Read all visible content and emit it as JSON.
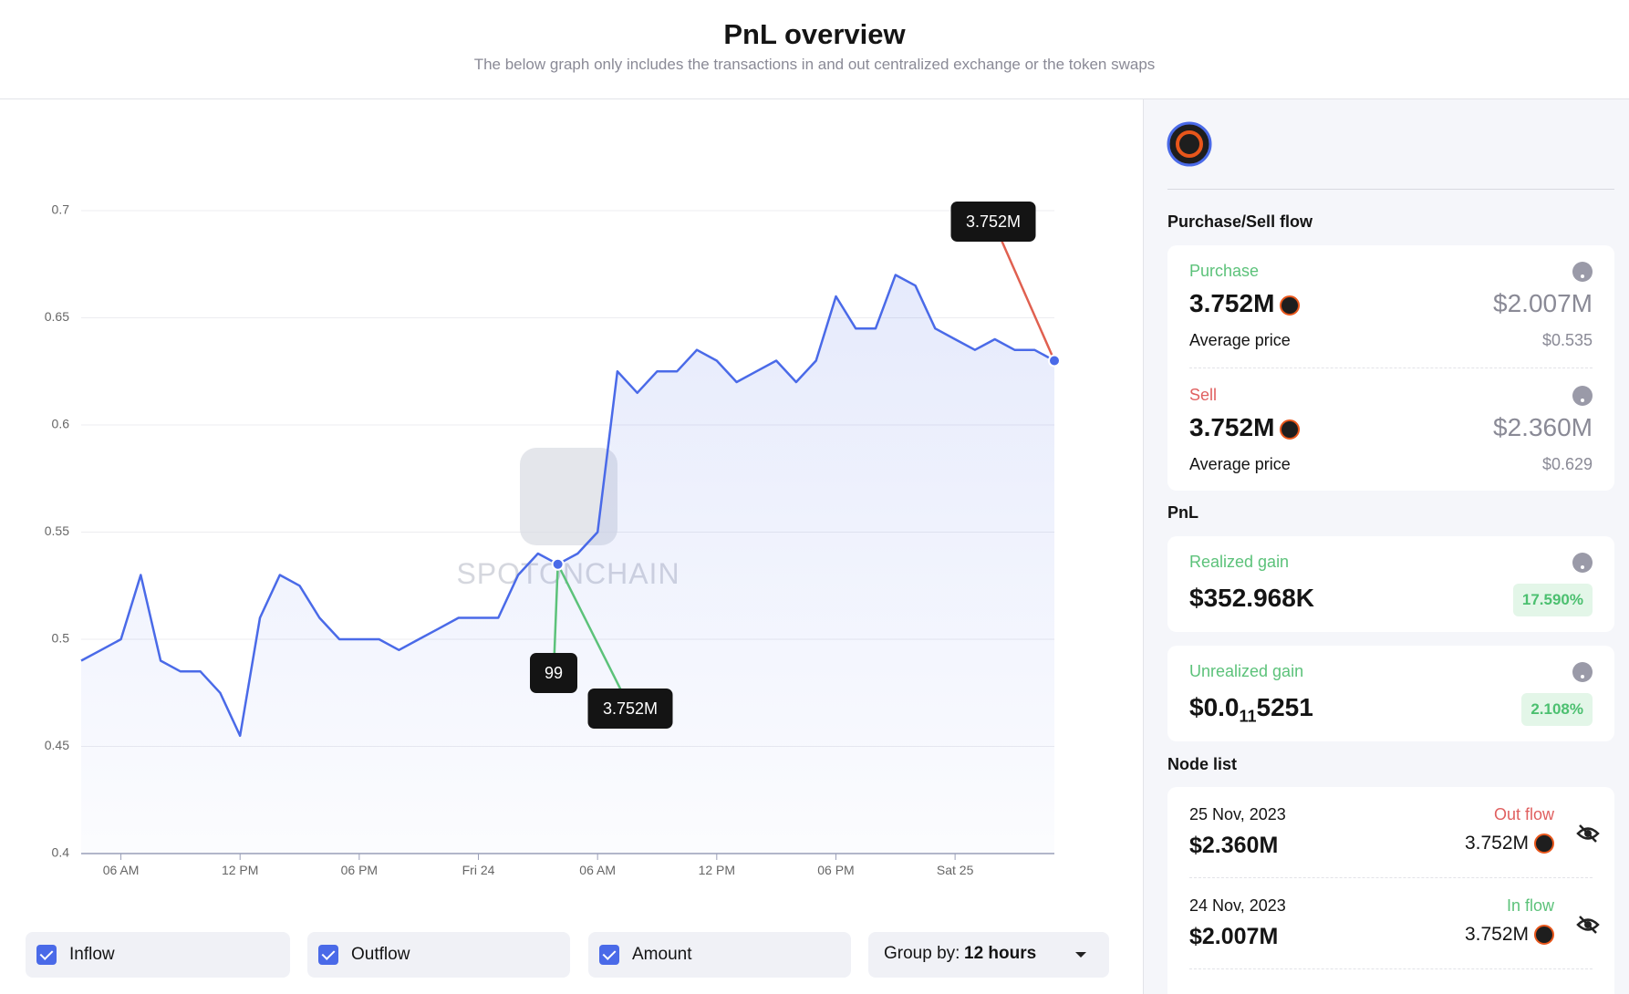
{
  "header": {
    "title": "PnL overview",
    "subtitle": "The below graph only includes the transactions in and out centralized exchange or the token swaps"
  },
  "chart_data": {
    "type": "line",
    "color": "#4a6ae8",
    "grid": true,
    "categories": [
      null,
      null,
      "06 AM",
      null,
      null,
      null,
      null,
      null,
      "12 PM",
      null,
      null,
      null,
      null,
      null,
      "06 PM",
      null,
      null,
      null,
      null,
      null,
      "Fri 24",
      null,
      null,
      null,
      null,
      null,
      "06 AM",
      null,
      null,
      null,
      null,
      null,
      "12 PM",
      null,
      null,
      null,
      null,
      null,
      "06 PM",
      null,
      null,
      null,
      null,
      null,
      "Sat 25",
      null,
      null,
      null,
      null,
      null
    ],
    "values": [
      0.49,
      0.495,
      0.5,
      0.53,
      0.49,
      0.485,
      0.485,
      0.475,
      0.455,
      0.51,
      0.53,
      0.525,
      0.51,
      0.5,
      0.5,
      0.5,
      0.495,
      0.5,
      0.505,
      0.51,
      0.51,
      0.51,
      0.53,
      0.54,
      0.535,
      0.54,
      0.55,
      0.625,
      0.615,
      0.625,
      0.625,
      0.635,
      0.63,
      0.62,
      0.625,
      0.63,
      0.62,
      0.63,
      0.66,
      0.645,
      0.645,
      0.67,
      0.665,
      0.645,
      0.64,
      0.635,
      0.64,
      0.635,
      0.635,
      0.63
    ],
    "ylim": [
      0.4,
      0.7
    ],
    "yticks": [
      0.4,
      0.45,
      0.5,
      0.55,
      0.6,
      0.65,
      0.7
    ],
    "annotations": [
      "3.752M",
      "99",
      "3.752M"
    ],
    "watermark": "SPOTONCHAIN"
  },
  "controls": {
    "checkboxes": [
      "Inflow",
      "Outflow",
      "Amount"
    ],
    "group_by_label": "Group by:",
    "group_by_value": "12 hours"
  },
  "panel": {
    "flow_title": "Purchase/Sell flow",
    "purchase": {
      "label": "Purchase",
      "amount": "3.752M",
      "usd": "$2.007M",
      "avg_label": "Average price",
      "avg": "$0.535"
    },
    "sell": {
      "label": "Sell",
      "amount": "3.752M",
      "usd": "$2.360M",
      "avg_label": "Average price",
      "avg": "$0.629"
    },
    "pnl_title": "PnL",
    "realized": {
      "label": "Realized gain",
      "value": "$352.968K",
      "pct": "17.590%"
    },
    "unrealized": {
      "label": "Unrealized gain",
      "value_parts": [
        "$0.0",
        "11",
        "5251"
      ],
      "pct": "2.108%"
    },
    "node_title": "Node list",
    "nodes": [
      {
        "date": "25 Nov, 2023",
        "kind": "Out flow",
        "usd": "$2.360M",
        "amount": "3.752M"
      },
      {
        "date": "24 Nov, 2023",
        "kind": "In flow",
        "usd": "$2.007M",
        "amount": "3.752M"
      }
    ]
  }
}
